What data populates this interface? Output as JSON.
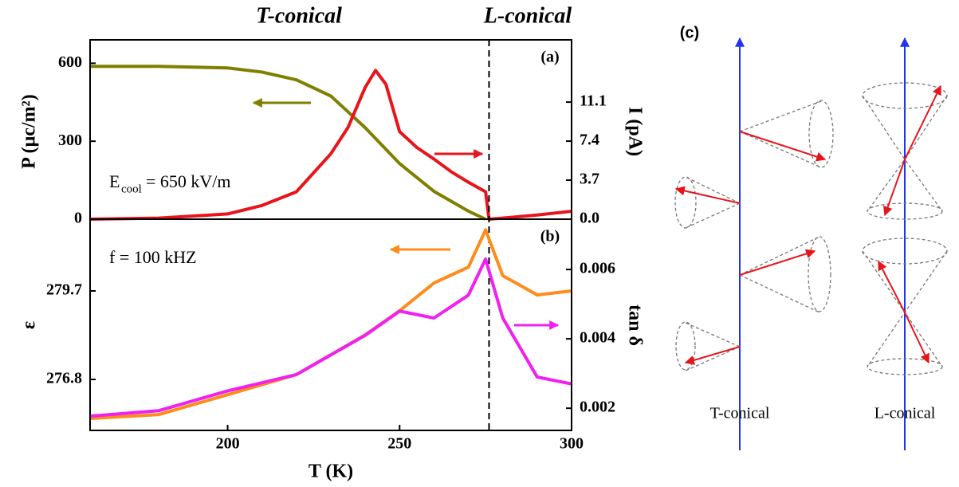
{
  "chart_data": [
    {
      "type": "line",
      "panel_label": "(a)",
      "phase_labels": [
        "T-conical",
        "L-conical"
      ],
      "ylabel": "P (μc/m²)",
      "y2label": "I (pA)",
      "annotation": {
        "symbol": "E",
        "subscript": "cool",
        "text": "= 650 kV/m"
      },
      "transition_T": 276,
      "xlim": [
        160,
        300
      ],
      "ylim": [
        0,
        690
      ],
      "yticks": [
        0,
        300,
        600
      ],
      "y2lim": [
        0,
        17.0
      ],
      "y2ticks": [
        {
          "value": 0,
          "label": "0.0"
        },
        3.7,
        7.4,
        11.1
      ],
      "series": [
        {
          "color": "#7f7f00",
          "axis": "y",
          "x": [
            160,
            180,
            200,
            210,
            220,
            230,
            235,
            240,
            250,
            260,
            270,
            275
          ],
          "values": [
            588,
            588,
            582,
            566,
            536,
            474,
            413,
            352,
            214,
            107,
            31,
            0
          ]
        },
        {
          "color": "#e8141b",
          "axis": "y2",
          "x": [
            160,
            180,
            200,
            210,
            220,
            230,
            235,
            240,
            243,
            246,
            250,
            255,
            260,
            265,
            270,
            275,
            276,
            280,
            290,
            300
          ],
          "values": [
            0,
            0.1,
            0.5,
            1.3,
            2.6,
            6.2,
            8.7,
            12.5,
            14.1,
            12.8,
            8.3,
            6.8,
            5.7,
            4.5,
            3.5,
            2.6,
            0,
            0.1,
            0.4,
            0.75
          ]
        }
      ]
    },
    {
      "type": "line",
      "panel_label": "(b)",
      "ylabel": "ε",
      "y2label": "tan δ",
      "xlabel": "T (K)",
      "annotation": {
        "text": "f = 100 kHZ"
      },
      "xlim": [
        160,
        300
      ],
      "xticks": [
        200,
        250,
        300
      ],
      "ylim": [
        275.13,
        282.05
      ],
      "yticks": [
        276.8,
        279.7
      ],
      "y2lim": [
        0.00136,
        0.00745
      ],
      "y2ticks": [
        0.002,
        0.004,
        0.006
      ],
      "series": [
        {
          "color": "#ff8c1a",
          "axis": "y",
          "x": [
            160,
            180,
            200,
            220,
            240,
            250,
            260,
            270,
            275,
            280,
            290,
            300
          ],
          "values": [
            275.52,
            275.65,
            276.3,
            276.96,
            278.26,
            279.05,
            279.96,
            280.48,
            281.7,
            280.2,
            279.57,
            279.7
          ]
        },
        {
          "color": "#f020f0",
          "axis": "y2",
          "x": [
            160,
            180,
            200,
            220,
            240,
            250,
            260,
            270,
            275,
            280,
            290,
            300
          ],
          "values": [
            0.00177,
            0.00193,
            0.0025,
            0.00297,
            0.0041,
            0.0048,
            0.0046,
            0.00526,
            0.0063,
            0.0046,
            0.0029,
            0.0027
          ]
        }
      ]
    }
  ],
  "diagram": {
    "label": "(c)",
    "captions": [
      "T-conical",
      "L-conical"
    ]
  }
}
